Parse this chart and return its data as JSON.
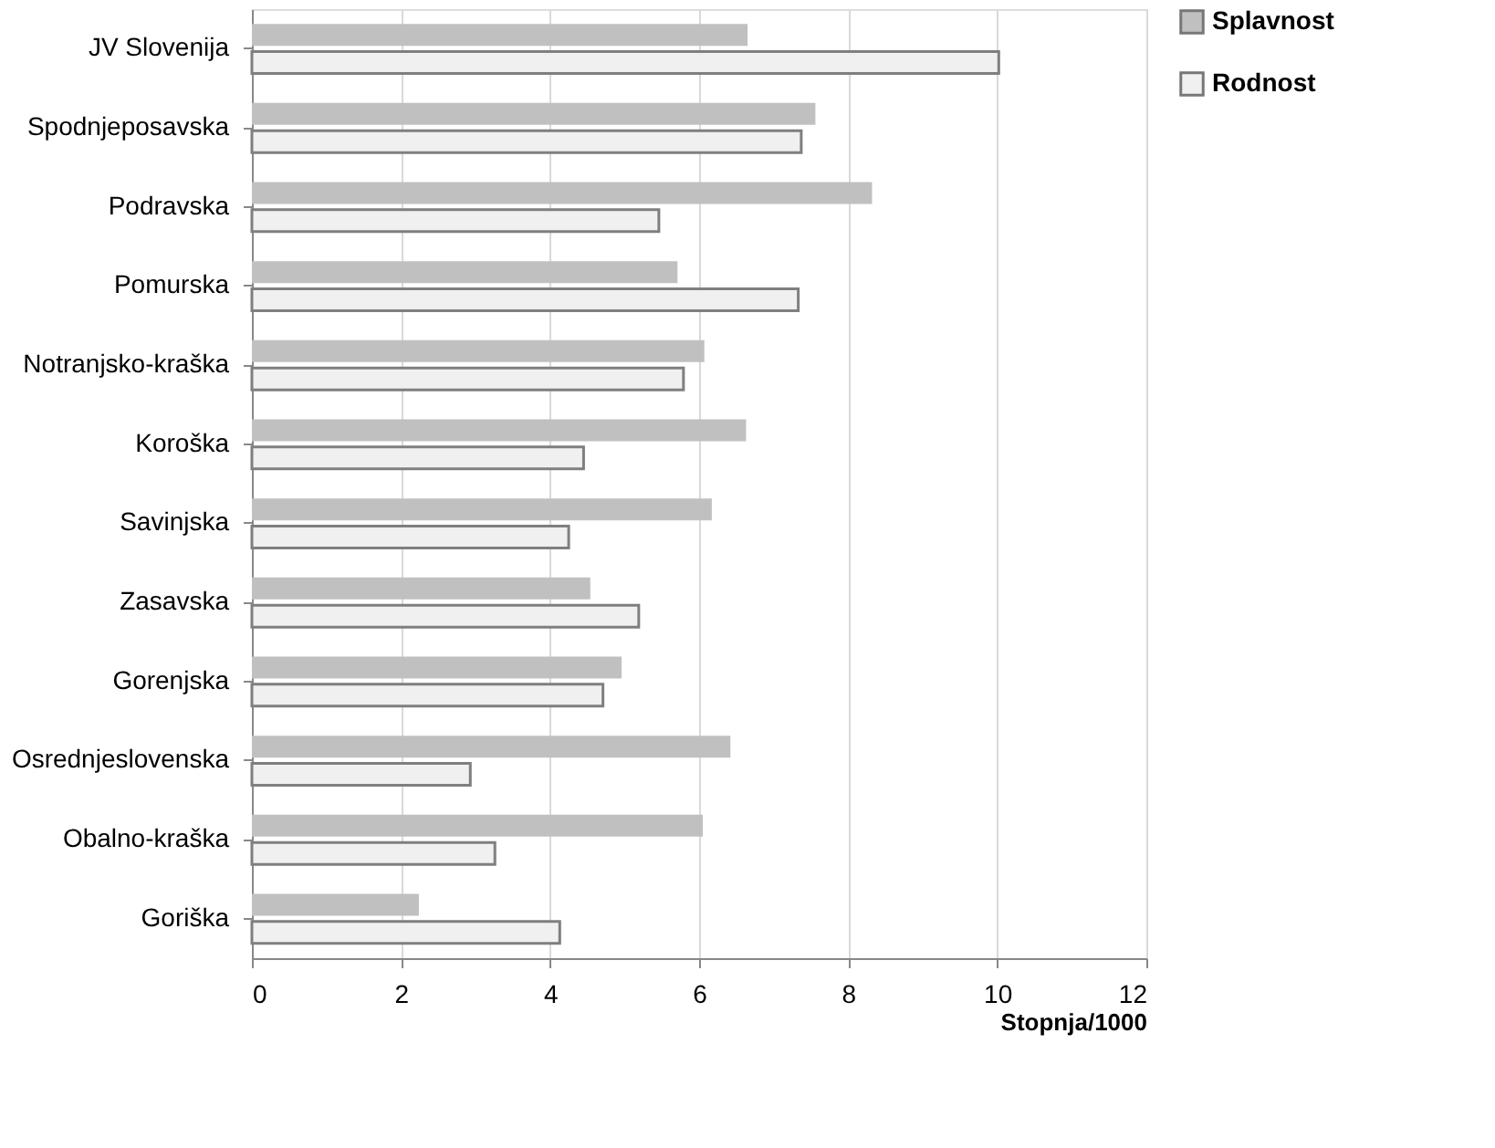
{
  "chart_data": {
    "type": "bar",
    "orientation": "horizontal",
    "xlabel": "Stopnja/1000",
    "categories": [
      "JV Slovenija",
      "Spodnjeposavska",
      "Podravska",
      "Pomurska",
      "Notranjsko-kraška",
      "Koroška",
      "Savinjska",
      "Zasavska",
      "Gorenjska",
      "Osrednjeslovenska",
      "Obalno-kraška",
      "Goriška"
    ],
    "series": [
      {
        "name": "Splavnost",
        "color": "#c0c0c0",
        "values": [
          6.65,
          7.56,
          8.32,
          5.71,
          6.07,
          6.63,
          6.17,
          4.54,
          4.96,
          6.42,
          6.05,
          2.24
        ]
      },
      {
        "name": "Rodnost",
        "color": "#f0f0f0",
        "values": [
          10.02,
          7.37,
          5.46,
          7.33,
          5.79,
          4.45,
          4.25,
          5.19,
          4.71,
          2.93,
          3.26,
          4.13
        ]
      }
    ],
    "xlim": [
      0,
      12
    ],
    "xticks": [
      0,
      2,
      4,
      6,
      8,
      10,
      12
    ],
    "grid": "x",
    "legend": "right"
  }
}
